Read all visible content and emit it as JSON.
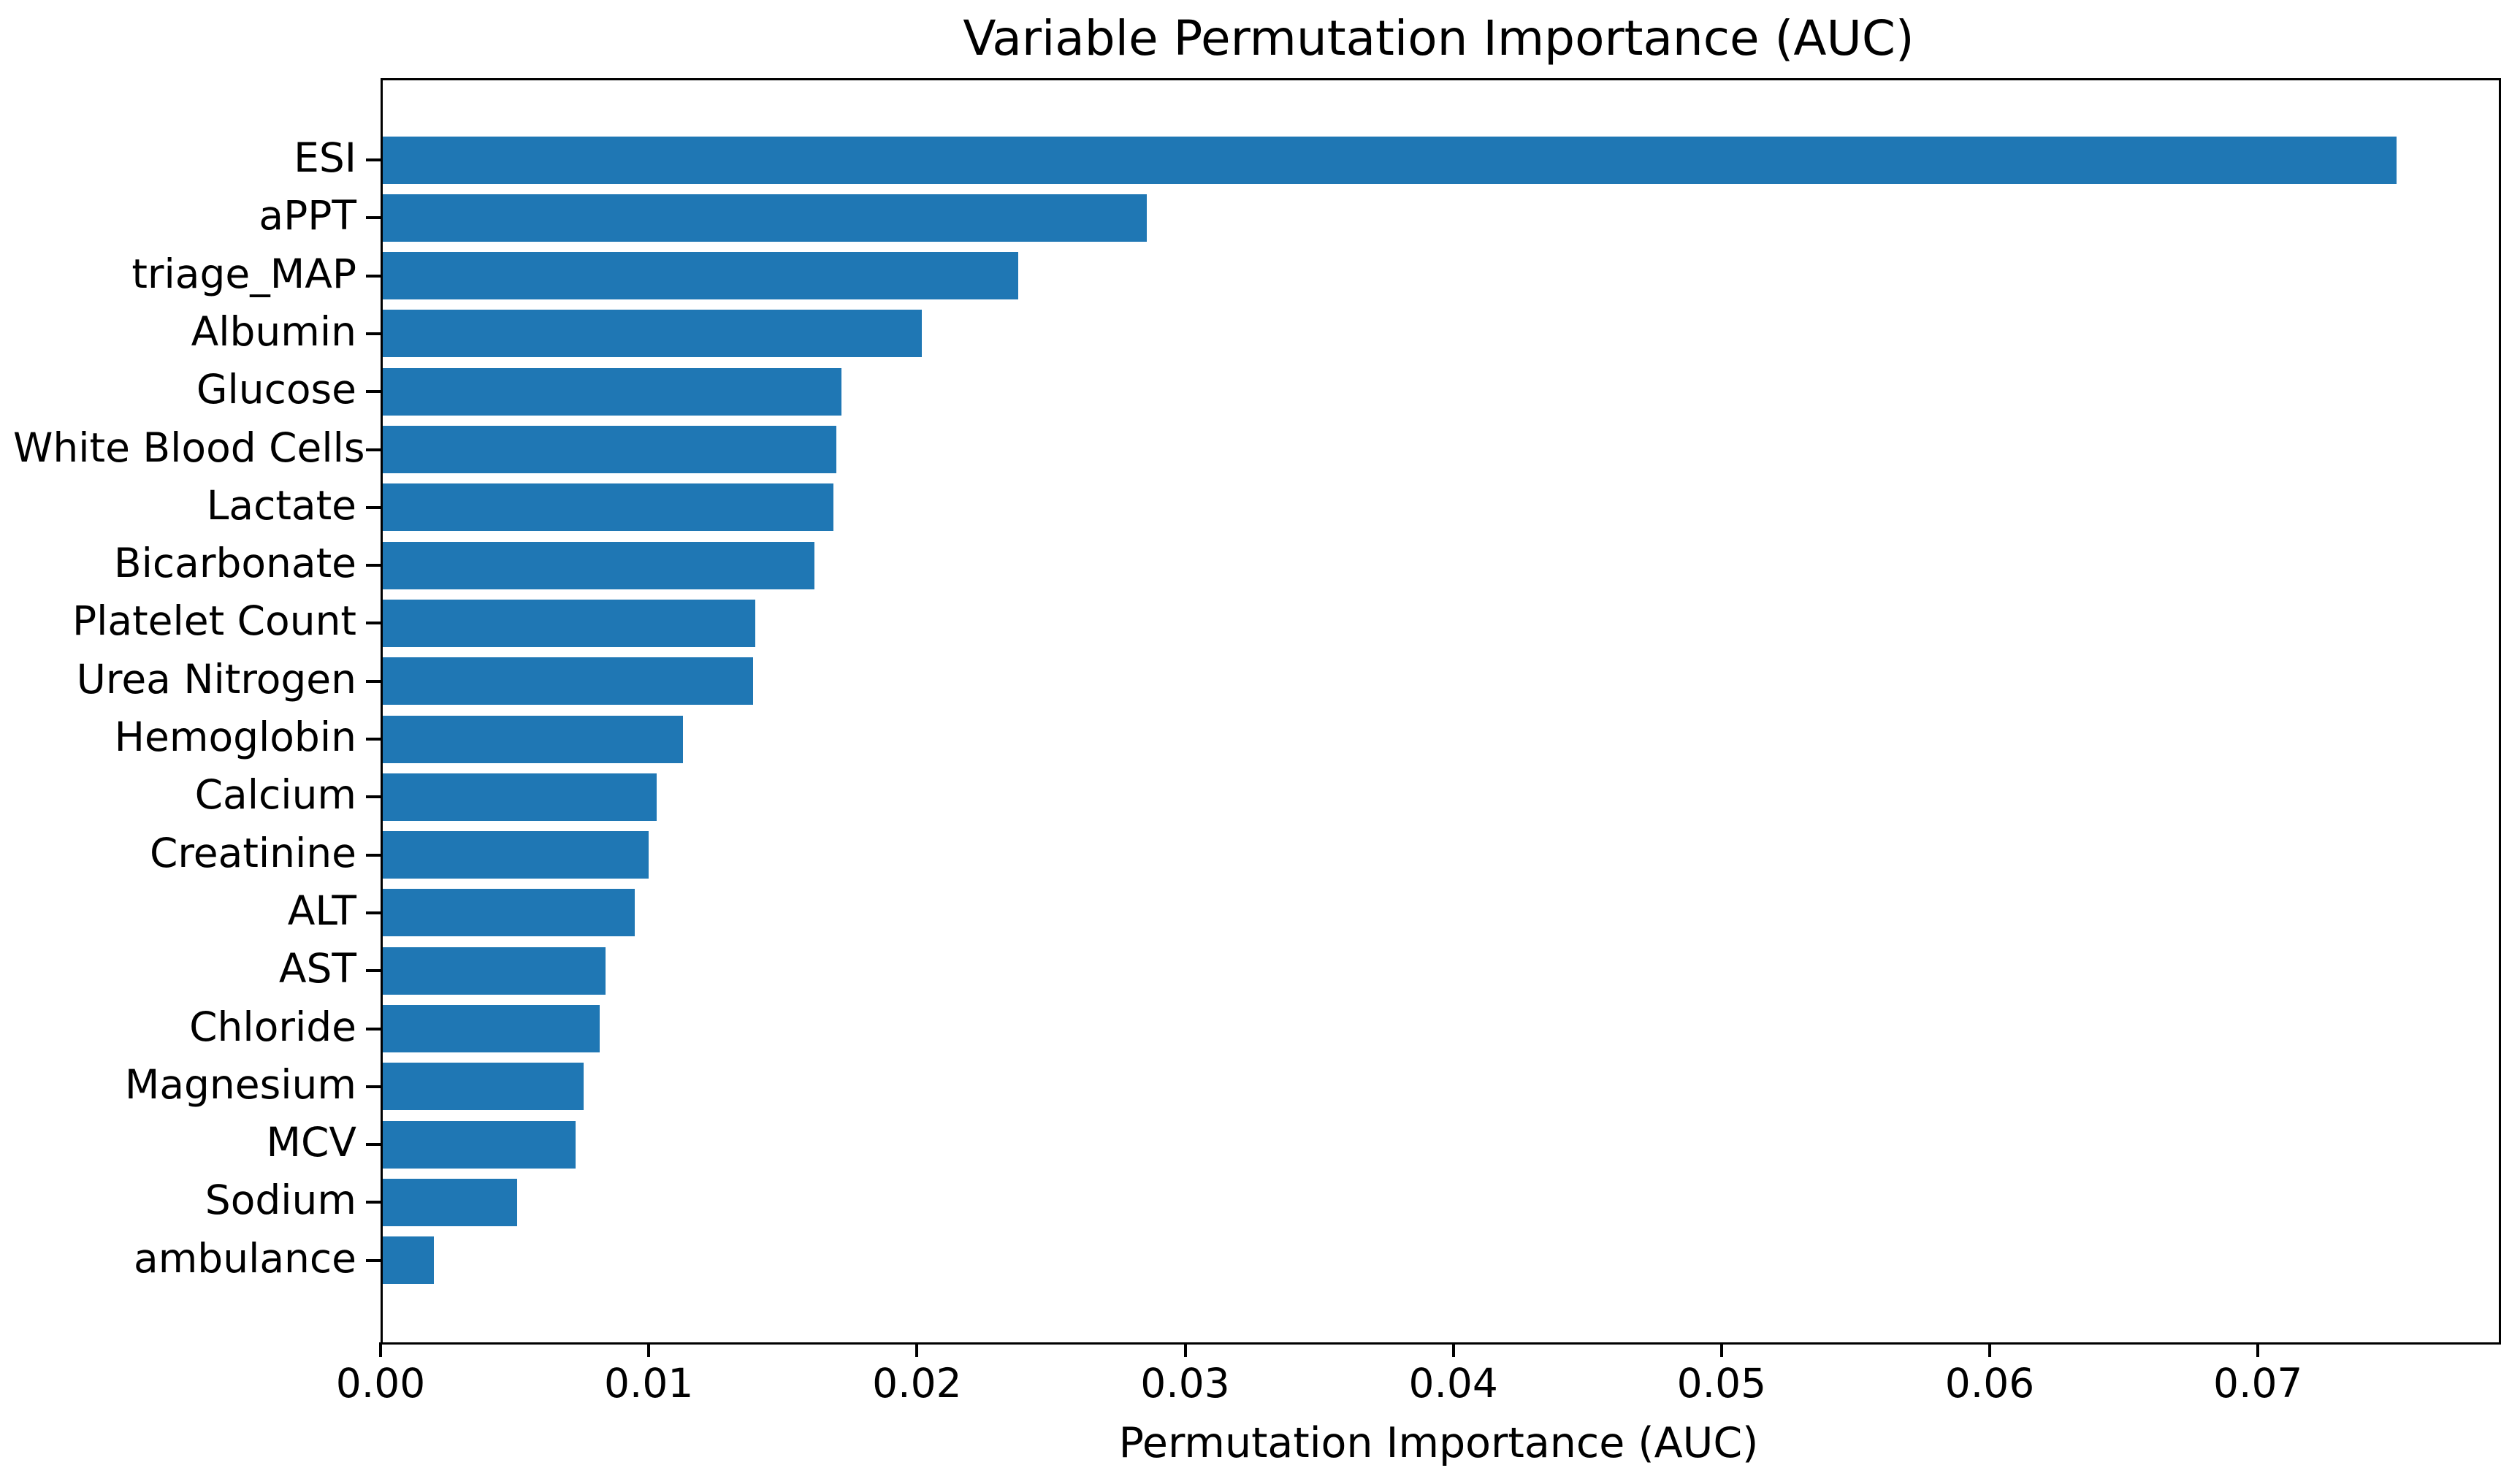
{
  "figure": {
    "background": "#ffffff",
    "text_color": "#000000",
    "spine_color": "#000000"
  },
  "chart_data": {
    "type": "bar",
    "orientation": "horizontal",
    "title": "Variable Permutation Importance (AUC)",
    "xlabel": "Permutation Importance (AUC)",
    "ylabel": "",
    "categories": [
      "ESI",
      "aPPT",
      "triage_MAP",
      "Albumin",
      "Glucose",
      "White Blood Cells",
      "Lactate",
      "Bicarbonate",
      "Platelet Count",
      "Urea Nitrogen",
      "Hemoglobin",
      "Calcium",
      "Creatinine",
      "ALT",
      "AST",
      "Chloride",
      "Magnesium",
      "MCV",
      "Sodium",
      "ambulance"
    ],
    "values": [
      0.0751,
      0.0285,
      0.0237,
      0.0201,
      0.0171,
      0.0169,
      0.0168,
      0.0161,
      0.0139,
      0.0138,
      0.0112,
      0.0102,
      0.0099,
      0.0094,
      0.0083,
      0.0081,
      0.0075,
      0.0072,
      0.005,
      0.0019
    ],
    "bar_color": "#1f77b4",
    "xlim": [
      0,
      0.0789
    ],
    "xticks": [
      0.0,
      0.01,
      0.02,
      0.03,
      0.04,
      0.05,
      0.06,
      0.07
    ],
    "xtick_labels": [
      "0.00",
      "0.01",
      "0.02",
      "0.03",
      "0.04",
      "0.05",
      "0.06",
      "0.07"
    ],
    "grid": false,
    "legend": false
  }
}
